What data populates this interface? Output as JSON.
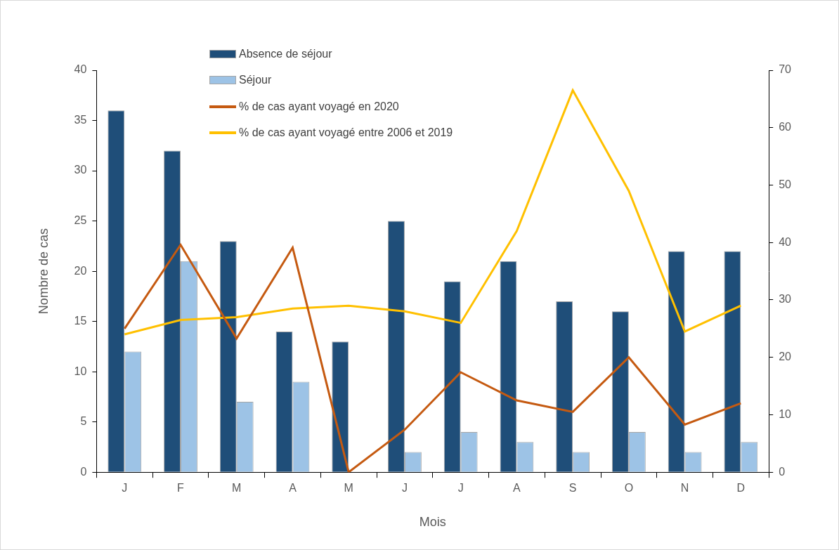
{
  "chart_data": {
    "type": "bar",
    "x_label": "Mois",
    "y_label": "Nombre de cas",
    "categories": [
      "J",
      "F",
      "M",
      "A",
      "M",
      "J",
      "J",
      "A",
      "S",
      "O",
      "N",
      "D"
    ],
    "series": [
      {
        "name": "Absence de séjour",
        "type": "bar",
        "color": "#1f4e79",
        "values": [
          36,
          32,
          23,
          14,
          13,
          25,
          19,
          21,
          17,
          16,
          22,
          22
        ]
      },
      {
        "name": "Séjour",
        "type": "bar",
        "color": "#9dc3e6",
        "values": [
          12,
          21,
          7,
          9,
          0,
          2,
          4,
          3,
          2,
          4,
          2,
          3
        ]
      },
      {
        "name": "% de cas ayant voyagé en 2020",
        "type": "line",
        "axis": "y2",
        "color": "#c55a11",
        "values": [
          25,
          39.6,
          23.3,
          39.1,
          0,
          7.4,
          17.4,
          12.5,
          10.5,
          20,
          8.3,
          12
        ]
      },
      {
        "name": "% de cas ayant voyagé entre 2006 et 2019",
        "type": "line",
        "axis": "y2",
        "color": "#ffc000",
        "values": [
          24,
          26.5,
          27,
          28.5,
          29,
          28,
          26,
          42,
          66.5,
          49,
          24.5,
          29
        ]
      }
    ],
    "ylim": [
      0,
      40
    ],
    "yticks": [
      0,
      5,
      10,
      15,
      20,
      25,
      30,
      35,
      40
    ],
    "y2lim": [
      0,
      70
    ],
    "y2ticks": [
      0,
      10,
      20,
      30,
      40,
      50,
      60,
      70
    ],
    "grid": false,
    "legend": "top-left"
  }
}
